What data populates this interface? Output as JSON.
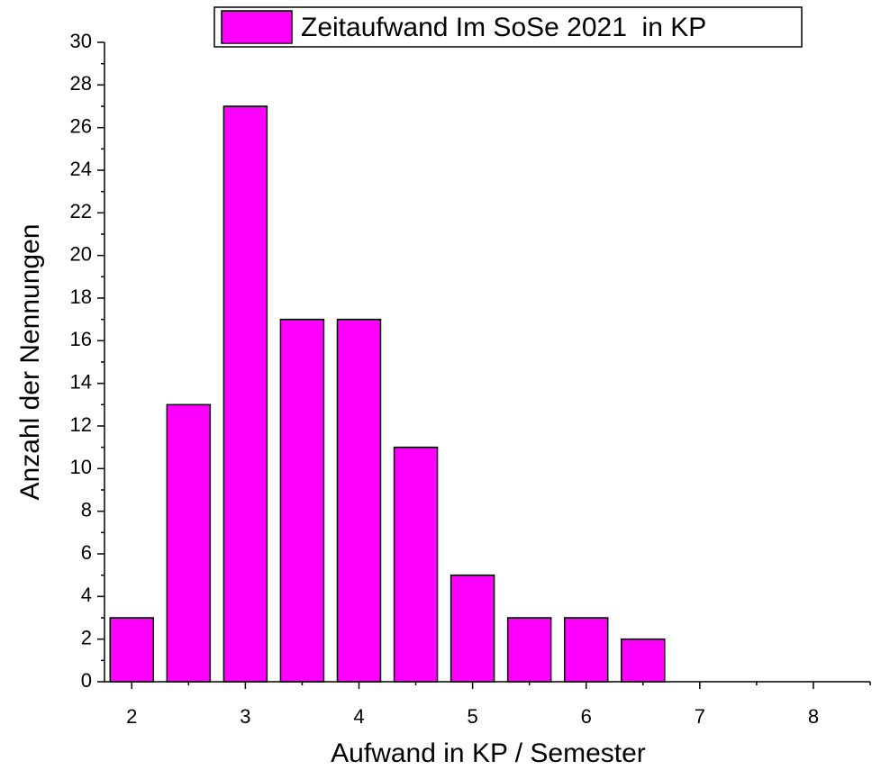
{
  "chart_data": {
    "type": "bar",
    "x_label": "Aufwand in KP / Semester",
    "y_label": "Anzahl der Nennungen",
    "x": [
      2,
      2.5,
      3,
      3.5,
      4,
      4.5,
      5,
      5.5,
      6,
      6.5
    ],
    "series": [
      {
        "name": "Zeitaufwand Im SoSe 2021  in KP",
        "color": "#ff00ff",
        "values": [
          3,
          13,
          27,
          17,
          17,
          11,
          5,
          3,
          3,
          2
        ]
      }
    ],
    "xlim": [
      1.76,
      8.5
    ],
    "xticks": [
      2,
      3,
      4,
      5,
      6,
      7,
      8
    ],
    "ylim": [
      0,
      30
    ],
    "yticks": [
      0,
      2,
      4,
      6,
      8,
      10,
      12,
      14,
      16,
      18,
      20,
      22,
      24,
      26,
      28,
      30
    ],
    "legend": "top"
  }
}
